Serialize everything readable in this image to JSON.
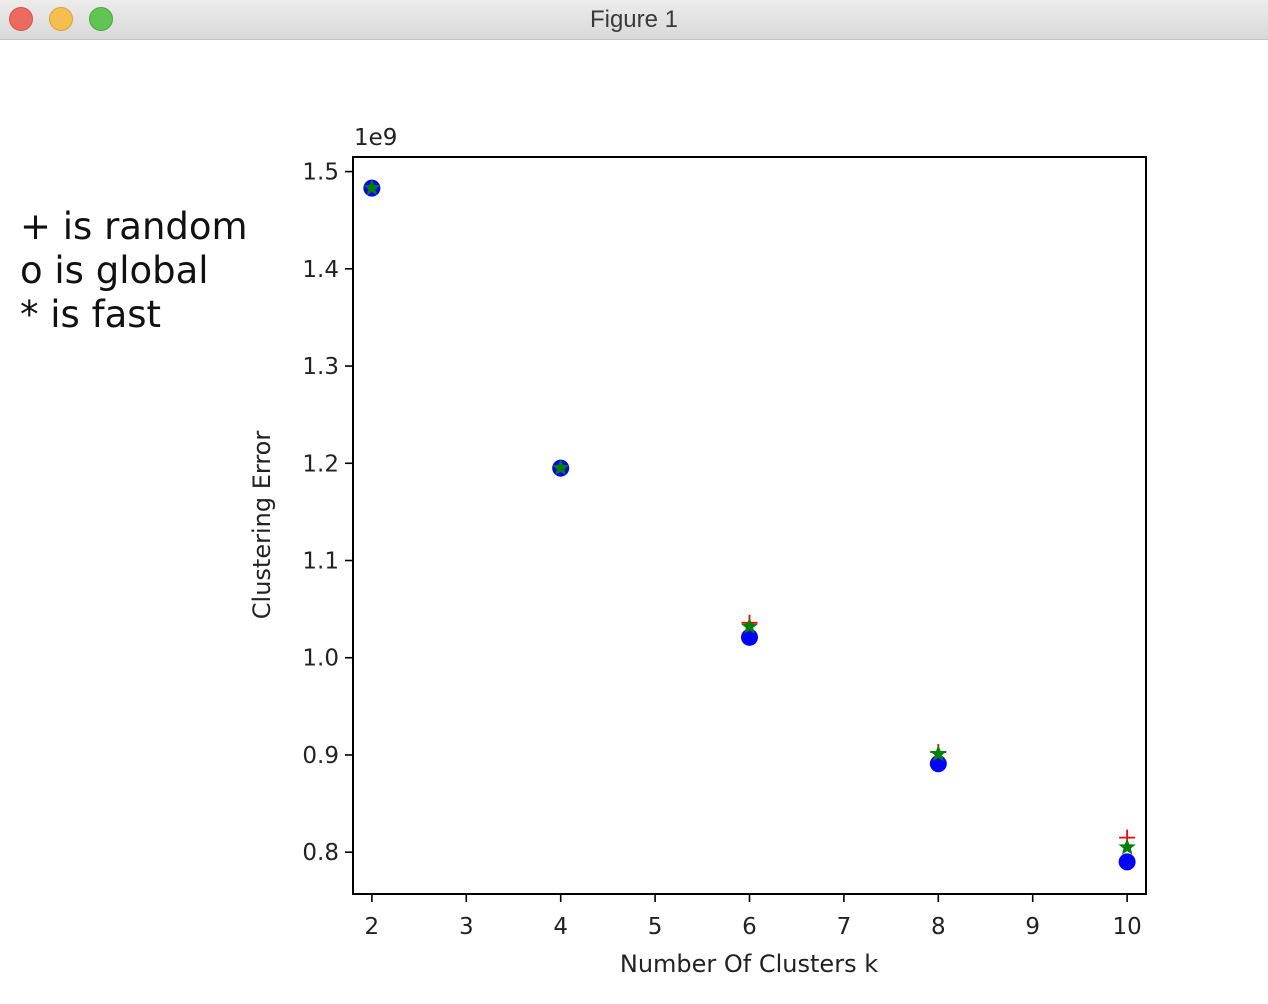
{
  "window": {
    "title": "Figure 1"
  },
  "annotation": {
    "lines": [
      "+ is random",
      "o is global",
      "* is fast"
    ]
  },
  "chart_data": {
    "type": "scatter",
    "xlabel": "Number Of Clusters k",
    "ylabel": "Clustering Error",
    "offset_text": "1e9",
    "xlim": [
      1.8,
      10.2
    ],
    "ylim": [
      0.757,
      1.515
    ],
    "xticks": [
      2,
      3,
      4,
      5,
      6,
      7,
      8,
      9,
      10
    ],
    "yticks": [
      0.8,
      0.9,
      1.0,
      1.1,
      1.2,
      1.3,
      1.4,
      1.5
    ],
    "grid": false,
    "x": [
      2,
      4,
      6,
      8,
      10
    ],
    "series": [
      {
        "marker": "+",
        "color": "#ff0000",
        "values": [
          1.483,
          1.195,
          1.036,
          0.903,
          0.815
        ]
      },
      {
        "marker": "o",
        "color": "#0000ff",
        "values": [
          1.483,
          1.195,
          1.021,
          0.891,
          0.79
        ]
      },
      {
        "marker": "*",
        "color": "#008000",
        "values": [
          1.483,
          1.195,
          1.032,
          0.901,
          0.805
        ]
      }
    ]
  }
}
